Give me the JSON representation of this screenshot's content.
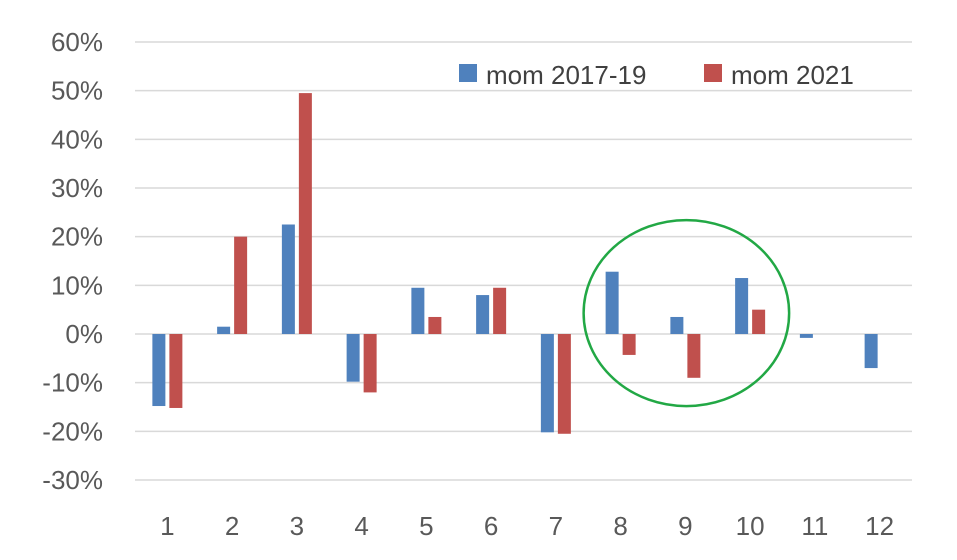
{
  "chart_data": {
    "type": "bar",
    "title": "",
    "xlabel": "",
    "ylabel": "",
    "categories": [
      "1",
      "2",
      "3",
      "4",
      "5",
      "6",
      "7",
      "8",
      "9",
      "10",
      "11",
      "12"
    ],
    "series": [
      {
        "name": "mom 2017-19",
        "color": "#4f81bd",
        "values": [
          -14.8,
          1.5,
          22.5,
          -9.8,
          9.5,
          8.0,
          -20.2,
          12.8,
          3.5,
          11.5,
          -0.8,
          -7.0
        ]
      },
      {
        "name": "mom 2021",
        "color": "#c0504d",
        "values": [
          -15.2,
          20.0,
          49.5,
          -12.0,
          3.5,
          9.5,
          -20.5,
          -4.3,
          -9.0,
          5.0,
          null,
          null
        ]
      }
    ],
    "ylim": [
      -30,
      60
    ],
    "yticks": [
      "-30%",
      "-20%",
      "-10%",
      "0%",
      "10%",
      "20%",
      "30%",
      "40%",
      "50%",
      "60%"
    ],
    "ytick_values": [
      -30,
      -20,
      -10,
      0,
      10,
      20,
      30,
      40,
      50,
      60
    ],
    "grid": true,
    "legend_position": "top-right",
    "annotation": {
      "shape": "ellipse",
      "color": "#22a845",
      "highlights": [
        "8",
        "9",
        "10"
      ]
    }
  }
}
